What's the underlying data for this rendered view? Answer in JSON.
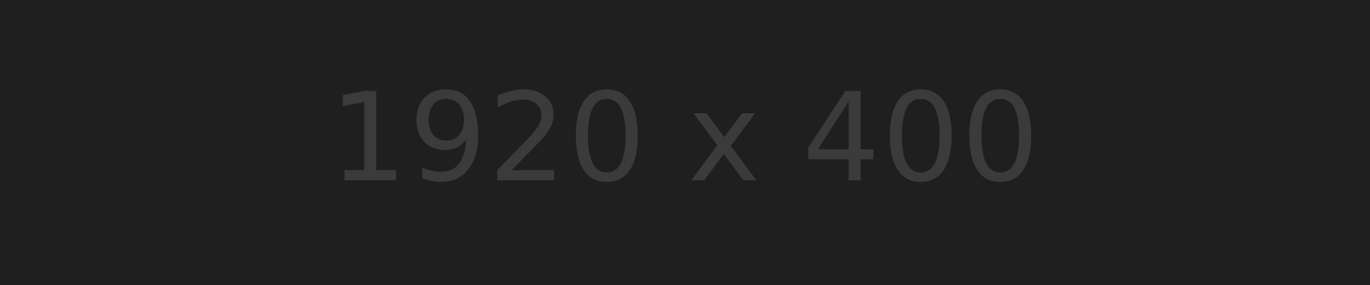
{
  "placeholder": {
    "label": "1920 x 400",
    "background_color": "#1f1f1f",
    "text_color": "#3b3b3b"
  }
}
